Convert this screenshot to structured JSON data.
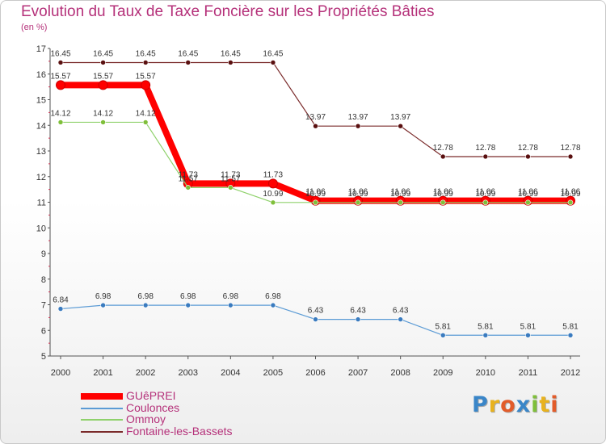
{
  "title": "Evolution du Taux de Taxe Foncière sur les Propriétés Bâties",
  "subtitle": "(en %)",
  "logo": {
    "text": "Proxiti",
    "letters": [
      {
        "ch": "P",
        "color": "#3a86c8"
      },
      {
        "ch": "r",
        "color": "#e8b21e"
      },
      {
        "ch": "o",
        "color": "#e25c2a"
      },
      {
        "ch": "x",
        "color": "#3a86c8"
      },
      {
        "ch": "i",
        "color": "#7fbf3a"
      },
      {
        "ch": "t",
        "color": "#e8b21e"
      },
      {
        "ch": "i",
        "color": "#e25c2a"
      }
    ]
  },
  "chart_data": {
    "type": "line",
    "x": [
      "2000",
      "2001",
      "2002",
      "2003",
      "2004",
      "2005",
      "2006",
      "2007",
      "2008",
      "2009",
      "2010",
      "2011",
      "2012"
    ],
    "ylim": [
      5,
      17
    ],
    "yticks": [
      "5",
      "6",
      "7",
      "8",
      "9",
      "10",
      "11",
      "12",
      "13",
      "14",
      "15",
      "16",
      "17"
    ],
    "grid": false,
    "legend": "bottom-left",
    "series": [
      {
        "name": "Fontaine-les-Bassets",
        "color": "#7a2a2a",
        "width": 1.2,
        "marker": "#5a1010",
        "values": [
          16.45,
          16.45,
          16.45,
          16.45,
          16.45,
          16.45,
          13.97,
          13.97,
          13.97,
          12.78,
          12.78,
          12.78,
          12.78
        ],
        "labels": [
          "16.45",
          "16.45",
          "16.45",
          "16.45",
          "16.45",
          "16.45",
          "13.97",
          "13.97",
          "13.97",
          "12.78",
          "12.78",
          "12.78",
          "12.78"
        ]
      },
      {
        "name": "Coulonces",
        "color": "#5b9bd5",
        "width": 1.2,
        "marker": "#3a7bbf",
        "values": [
          6.84,
          6.98,
          6.98,
          6.98,
          6.98,
          6.98,
          6.43,
          6.43,
          6.43,
          5.81,
          5.81,
          5.81,
          5.81
        ],
        "labels": [
          "6.84",
          "6.98",
          "6.98",
          "6.98",
          "6.98",
          "6.98",
          "6.43",
          "6.43",
          "6.43",
          "5.81",
          "5.81",
          "5.81",
          "5.81"
        ]
      },
      {
        "name": "GUêPREI",
        "color": "#ff0000",
        "width": 8,
        "marker": "#ff0000",
        "values": [
          15.57,
          15.57,
          15.57,
          11.73,
          11.73,
          11.73,
          11.06,
          11.06,
          11.06,
          11.06,
          11.06,
          11.06,
          11.06
        ],
        "labels": [
          "15.57",
          "15.57",
          "15.57",
          "11.73",
          "11.73",
          "11.73",
          "11.06",
          "11.06",
          "11.06",
          "11.06",
          "11.06",
          "11.06",
          "11.06"
        ]
      },
      {
        "name": "Ommoy",
        "color": "#8fd16b",
        "width": 1.2,
        "marker": "#7fbf3a",
        "values": [
          14.12,
          14.12,
          14.12,
          11.57,
          11.57,
          10.99,
          10.99,
          10.99,
          10.99,
          10.99,
          10.99,
          10.99,
          10.99
        ],
        "labels": [
          "14.12",
          "14.12",
          "14.12",
          "11.57",
          "11.57",
          "10.99",
          "10.99",
          "10.99",
          "10.99",
          "10.99",
          "10.99",
          "10.99",
          "10.99"
        ]
      }
    ],
    "legend_order": [
      "GUêPREI",
      "Coulonces",
      "Ommoy",
      "Fontaine-les-Bassets"
    ]
  }
}
